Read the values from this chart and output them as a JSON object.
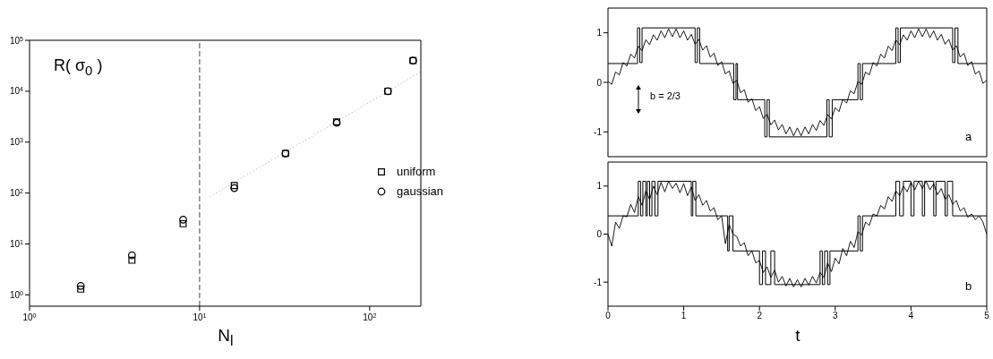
{
  "chart_data": [
    {
      "type": "scatter",
      "ylabel": "R( σ$_{0}$ )",
      "xlabel": "N$_{l}$",
      "log": "xy",
      "legend": "right",
      "x": [
        2,
        4,
        8,
        16,
        32,
        64,
        128,
        180
      ],
      "series": [
        {
          "name": "uniform",
          "color": "#000000",
          "marker": "square",
          "values": [
            1.3,
            4.8,
            25,
            140,
            600,
            2500,
            10000,
            40000
          ]
        },
        {
          "name": "gaussian",
          "color": "#000000",
          "marker": "circle",
          "values": [
            1.5,
            6,
            30,
            125,
            600,
            2400,
            10000,
            40000
          ]
        },
        {
          "type": "line",
          "color": "#999999",
          "line_style": "dotted",
          "marker": "none",
          "x": [
            11.5,
            200
          ],
          "values": [
            85,
            24000
          ]
        }
      ],
      "xlim": [
        1,
        200
      ],
      "ylim": [
        0.6,
        100000
      ],
      "xticks": [
        {
          "value": 1,
          "label": "10$^{0}$"
        },
        {
          "value": 10,
          "label": "10$^{1}$"
        },
        {
          "value": 100,
          "label": "10$^{2}$"
        }
      ],
      "yticks": [
        {
          "value": 1,
          "label": "10$^{0}$"
        },
        {
          "value": 10,
          "label": "10$^{1}$"
        },
        {
          "value": 100,
          "label": "10$^{2}$"
        },
        {
          "value": 1000,
          "label": "10$^{3}$"
        },
        {
          "value": 10000,
          "label": "10$^{4}$"
        },
        {
          "value": 100000,
          "label": "10$^{5}$"
        }
      ],
      "ref_lines": [
        {
          "axis": "x",
          "value": 10,
          "color": "#444444",
          "line_style": "dashed"
        }
      ]
    },
    {
      "type": "line",
      "tick_labels": "y",
      "annotations": [
        "b = 2/3",
        "a"
      ],
      "x": [
        0,
        0.05,
        0.1,
        0.15,
        0.2,
        0.25,
        0.3,
        0.35,
        0.4,
        0.45,
        0.5,
        0.55,
        0.6,
        0.65,
        0.7,
        0.75,
        0.8,
        0.85,
        0.9,
        0.95,
        1,
        1.05,
        1.1,
        1.15,
        1.2,
        1.25,
        1.3,
        1.35,
        1.4,
        1.45,
        1.5,
        1.55,
        1.6,
        1.65,
        1.7,
        1.75,
        1.8,
        1.85,
        1.9,
        1.95,
        2,
        2.05,
        2.1,
        2.15,
        2.2,
        2.25,
        2.3,
        2.35,
        2.4,
        2.45,
        2.5,
        2.55,
        2.6,
        2.65,
        2.7,
        2.75,
        2.8,
        2.85,
        2.9,
        2.95,
        3,
        3.05,
        3.1,
        3.15,
        3.2,
        3.25,
        3.3,
        3.35,
        3.4,
        3.45,
        3.5,
        3.55,
        3.6,
        3.65,
        3.7,
        3.75,
        3.8,
        3.85,
        3.9,
        3.95,
        4,
        4.05,
        4.1,
        4.15,
        4.2,
        4.25,
        4.3,
        4.35,
        4.4,
        4.45,
        4.5,
        4.55,
        4.6,
        4.65,
        4.7,
        4.75,
        4.8,
        4.85,
        4.9,
        4.95,
        5
      ],
      "series": [
        {
          "type": "step",
          "color": "#000000",
          "x": [
            0,
            0.39,
            0.42,
            0.45,
            1.15,
            1.18,
            1.21,
            1.66,
            1.69,
            1.71,
            2.07,
            2.1,
            2.13,
            2.89,
            2.92,
            2.96,
            3.3,
            3.33,
            3.36,
            3.8,
            3.83,
            3.86,
            4.55,
            4.58,
            4.62,
            5
          ],
          "values": [
            0.38,
            1.1,
            0.4,
            1.1,
            0.4,
            1.1,
            0.38,
            -0.35,
            0.38,
            -0.35,
            -1.1,
            -0.35,
            -1.1,
            -0.35,
            -1.1,
            -0.35,
            0.38,
            -0.35,
            0.38,
            1.1,
            0.4,
            1.1,
            0.4,
            1.1,
            0.38,
            0.38
          ]
        },
        {
          "type": "line",
          "color": "#000000",
          "values": [
            0.02,
            -0.04,
            0.21,
            0.15,
            0.4,
            0.33,
            0.57,
            0.49,
            0.73,
            0.64,
            0.86,
            0.76,
            0.96,
            0.85,
            1.04,
            0.9,
            1.08,
            0.92,
            1.08,
            0.9,
            1.04,
            0.85,
            0.97,
            0.77,
            0.87,
            0.65,
            0.74,
            0.51,
            0.59,
            0.34,
            0.42,
            0.17,
            0.23,
            -0.02,
            0.04,
            -0.21,
            -0.15,
            -0.4,
            -0.33,
            -0.57,
            -0.49,
            -0.73,
            -0.64,
            -0.86,
            -0.76,
            -0.96,
            -0.85,
            -1.04,
            -0.9,
            -1.08,
            -0.92,
            -1.08,
            -0.9,
            -1.04,
            -0.85,
            -0.97,
            -0.77,
            -0.87,
            -0.65,
            -0.74,
            -0.51,
            -0.59,
            -0.34,
            -0.42,
            -0.17,
            -0.23,
            0.02,
            -0.04,
            0.21,
            0.15,
            0.4,
            0.33,
            0.57,
            0.49,
            0.73,
            0.64,
            0.86,
            0.76,
            0.96,
            0.85,
            1.04,
            0.9,
            1.08,
            0.92,
            1.08,
            0.9,
            1.04,
            0.85,
            0.97,
            0.77,
            0.87,
            0.65,
            0.74,
            0.51,
            0.59,
            0.34,
            0.42,
            0.17,
            0.23,
            -0.02,
            0.04
          ]
        }
      ],
      "xlim": [
        0,
        5
      ],
      "xticks": [
        0,
        1,
        2,
        3,
        4,
        5
      ],
      "ylim": [
        -1.5,
        1.5
      ],
      "yticks": [
        -1,
        0,
        1
      ]
    },
    {
      "type": "line",
      "xlabel": "t",
      "annotations": [
        "b"
      ],
      "x": [
        0,
        0.05,
        0.1,
        0.15,
        0.2,
        0.25,
        0.3,
        0.35,
        0.4,
        0.45,
        0.5,
        0.55,
        0.6,
        0.65,
        0.7,
        0.75,
        0.8,
        0.85,
        0.9,
        0.95,
        1,
        1.05,
        1.1,
        1.15,
        1.2,
        1.25,
        1.3,
        1.35,
        1.4,
        1.45,
        1.5,
        1.55,
        1.6,
        1.65,
        1.7,
        1.75,
        1.8,
        1.85,
        1.9,
        1.95,
        2,
        2.05,
        2.1,
        2.15,
        2.2,
        2.25,
        2.3,
        2.35,
        2.4,
        2.45,
        2.5,
        2.55,
        2.6,
        2.65,
        2.7,
        2.75,
        2.8,
        2.85,
        2.9,
        2.95,
        3,
        3.05,
        3.1,
        3.15,
        3.2,
        3.25,
        3.3,
        3.35,
        3.4,
        3.45,
        3.5,
        3.55,
        3.6,
        3.65,
        3.7,
        3.75,
        3.8,
        3.85,
        3.9,
        3.95,
        4,
        4.05,
        4.1,
        4.15,
        4.2,
        4.25,
        4.3,
        4.35,
        4.4,
        4.45,
        4.5,
        4.55,
        4.6,
        4.65,
        4.7,
        4.75,
        4.8,
        4.85,
        4.9,
        4.95,
        5
      ],
      "series": [
        {
          "type": "step",
          "color": "#000000",
          "x": [
            0,
            0.4,
            0.43,
            0.46,
            0.5,
            0.52,
            0.55,
            0.58,
            0.62,
            0.66,
            1.1,
            1.12,
            1.16,
            1.58,
            1.6,
            1.65,
            2,
            2.04,
            2.08,
            2.15,
            2.2,
            2.8,
            2.83,
            2.86,
            2.9,
            2.93,
            3.3,
            3.33,
            3.36,
            3.8,
            3.85,
            3.9,
            4,
            4.04,
            4.15,
            4.18,
            4.3,
            4.33,
            4.45,
            4.48,
            4.55,
            5
          ],
          "values": [
            0.38,
            1.1,
            0.38,
            1.1,
            0.38,
            1.1,
            0.38,
            1.1,
            0.38,
            1.1,
            0.38,
            1.1,
            0.38,
            -0.35,
            0.38,
            -0.35,
            -1.05,
            -0.35,
            -1.05,
            -0.35,
            -1.05,
            -0.35,
            -1.05,
            -0.35,
            -1.05,
            -0.35,
            0.38,
            -0.35,
            0.38,
            1.1,
            0.38,
            1.1,
            0.38,
            1.1,
            0.38,
            1.1,
            0.38,
            1.1,
            0.38,
            1.1,
            0.38,
            0.38
          ]
        },
        {
          "type": "line",
          "color": "#000000",
          "values": [
            0,
            -0.25,
            0.25,
            0.12,
            0.38,
            0.36,
            0.62,
            0.45,
            0.78,
            0.6,
            0.9,
            0.72,
            1,
            0.82,
            1.08,
            0.88,
            1.1,
            0.95,
            1.06,
            0.86,
            1.05,
            0.8,
            0.98,
            0.7,
            0.82,
            0.6,
            0.7,
            0.48,
            0.55,
            0.3,
            0.38,
            -0.2,
            0.2,
            0,
            -0.05,
            -0.25,
            -0.18,
            -0.45,
            -0.35,
            -0.6,
            -0.55,
            -0.8,
            -0.68,
            -0.9,
            -0.75,
            -1,
            -0.88,
            -1.08,
            -0.92,
            -1.1,
            -0.95,
            -1.1,
            -0.92,
            -1.06,
            -0.88,
            -1.02,
            -0.8,
            -0.9,
            -0.6,
            -0.78,
            -0.5,
            -0.62,
            -0.3,
            -0.45,
            -0.15,
            -0.28,
            0.05,
            -0.02,
            0.25,
            0.18,
            0.42,
            0.38,
            0.6,
            0.52,
            0.78,
            0.68,
            0.9,
            0.8,
            1,
            0.88,
            1.08,
            0.92,
            1.1,
            0.95,
            1.1,
            0.92,
            1.05,
            0.82,
            0.95,
            0.72,
            0.82,
            0.62,
            0.7,
            0.48,
            0.55,
            0.35,
            0.42,
            0.3,
            0.38,
            0.25,
            0
          ]
        }
      ],
      "xlim": [
        0,
        5
      ],
      "xticks": [
        0,
        1,
        2,
        3,
        4,
        5
      ],
      "ylim": [
        -1.5,
        1.5
      ],
      "yticks": [
        -1,
        0,
        1
      ]
    }
  ]
}
